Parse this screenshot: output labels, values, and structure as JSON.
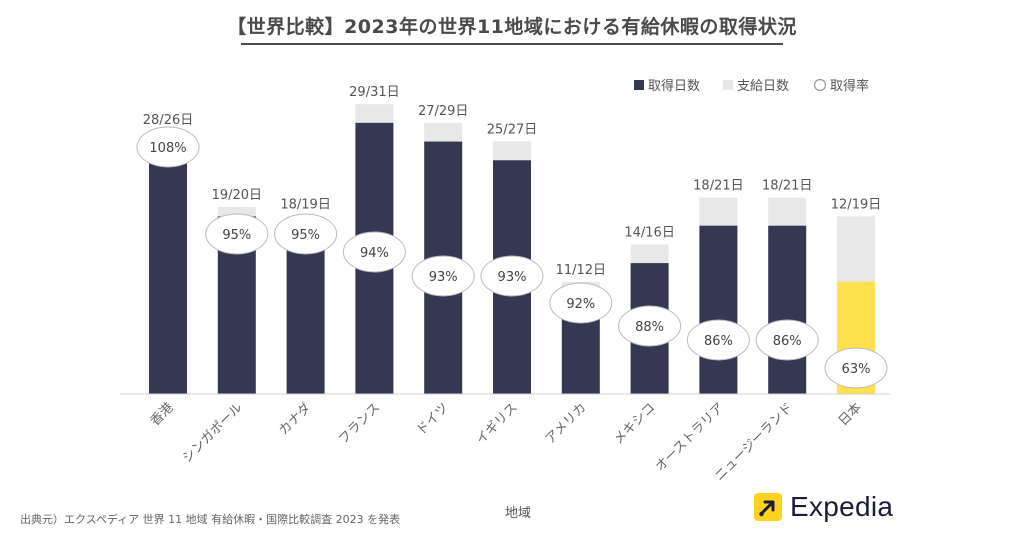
{
  "title": "【世界比較】2023年の世界11地域における有給休暇の取得状況",
  "source": "出典元）エクスペディア 世界 11 地域 有給休暇・国際比較調査 2023 を発表",
  "logo_text": "Expedia",
  "colors": {
    "taken": "#363853",
    "granted": "#e8e8e8",
    "highlight": "#ffe14d",
    "text": "#555555"
  },
  "chart_data": {
    "type": "bar",
    "title": "【世界比較】2023年の世界11地域における有給休暇の取得状況",
    "xlabel": "地域",
    "ylabel": "",
    "ylim": [
      0,
      31
    ],
    "legend_position": "top-right",
    "grid": false,
    "legend": [
      "取得日数",
      "支給日数",
      "取得率"
    ],
    "categories": [
      "香港",
      "シンガポール",
      "カナダ",
      "フランス",
      "ドイツ",
      "イギリス",
      "アメリカ",
      "メキシコ",
      "オーストラリア",
      "ニュージーランド",
      "日本"
    ],
    "series": [
      {
        "name": "取得日数",
        "values": [
          28,
          19,
          18,
          29,
          27,
          25,
          11,
          14,
          18,
          18,
          12
        ]
      },
      {
        "name": "支給日数",
        "values": [
          26,
          20,
          19,
          31,
          29,
          27,
          12,
          16,
          21,
          21,
          19
        ]
      }
    ],
    "bar_labels": [
      "28/26日",
      "19/20日",
      "18/19日",
      "29/31日",
      "27/29日",
      "25/27日",
      "11/12日",
      "14/16日",
      "18/21日",
      "18/21日",
      "12/19日"
    ],
    "rates": [
      "108%",
      "95%",
      "95%",
      "94%",
      "93%",
      "93%",
      "92%",
      "88%",
      "86%",
      "86%",
      "63%"
    ],
    "highlight_category": "日本"
  }
}
